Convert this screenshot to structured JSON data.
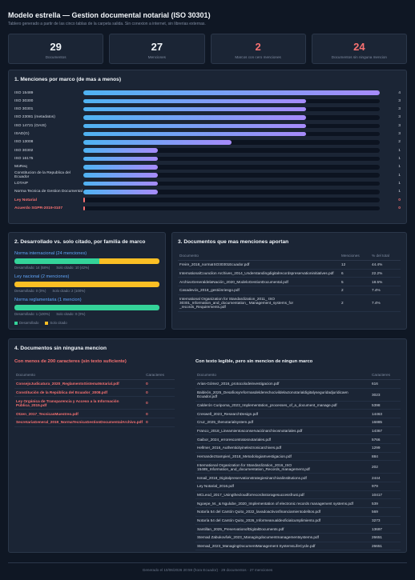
{
  "header": {
    "title": "Modelo estrella — Gestion documental notarial (ISO 30301)",
    "subtitle": "Tablero generado a partir de las cinco tablas de la carpeta salida. Sin conexion a internet, sin librerias externas."
  },
  "kpis": [
    {
      "value": 29,
      "label": "Documentos"
    },
    {
      "value": 27,
      "label": "Menciones"
    },
    {
      "value": 2,
      "label": "Marcos con cero menciones"
    },
    {
      "value": 24,
      "label": "Documentos sin ninguna mencion"
    }
  ],
  "mentions": {
    "title": "1. Menciones por marco (de mas a menos)",
    "categories": [
      "ISO 15489",
      "ISO 30300",
      "ISO 30301",
      "ISO 23081 (metadatos)",
      "ISO 14721 (OAIS)",
      "ISAD(G)",
      "ISO 13008",
      "ISO 30302",
      "ISO 16175",
      "MoReq",
      "Constitucion de la Republica del Ecuador",
      "LOTAIP",
      "Norma Tecnica de Gestion Documental",
      "Ley Notarial",
      "Acuerdo SGPR-2019-0107"
    ],
    "values": [
      4,
      3,
      3,
      3,
      3,
      3,
      2,
      1,
      1,
      1,
      1,
      1,
      1,
      0,
      0
    ]
  },
  "families": {
    "title": "2. Desarrollado vs. solo citado, por familia de marco",
    "items": [
      {
        "name": "Norma internacional (24 menciones)",
        "developed": 14,
        "cited": 10,
        "developed_label": "Desarrollado: 14 (58%)",
        "cited_label": "Solo citado: 10 (42%)"
      },
      {
        "name": "Ley nacional (2 menciones)",
        "developed": 0,
        "cited": 2,
        "developed_label": "Desarrollado: 0 (0%)",
        "cited_label": "Solo citado: 2 (100%)"
      },
      {
        "name": "Norma reglamentaria (1 mencion)",
        "developed": 1,
        "cited": 0,
        "developed_label": "Desarrollado: 1 (100%)",
        "cited_label": "Solo citado: 0 (0%)"
      }
    ],
    "legend": [
      "Desarrollado",
      "Solo citado"
    ]
  },
  "top_docs": {
    "title": "3. Documentos que mas menciones aportan",
    "headers": [
      "Documento",
      "Menciones",
      "% del total"
    ],
    "rows": [
      [
        "Freire_2018_normaISO30301Ecuador.pdf",
        12,
        "44.4%"
      ],
      [
        "InternationalCouncilon Archives_2014_Understandingdigitalrecordspreservationinitiatives.pdf",
        6,
        "22.2%"
      ],
      [
        "ArchivoGeneraldelaNación_2020_ModeloGestionDocumental.pdf",
        5,
        "18.5%"
      ],
      [
        "Casadevós_2018_gestiónriesgo.pdf",
        2,
        "7.4%"
      ],
      [
        "International Organization for Standardization_2011_ ISO 30301_Information_and_documentation_ Management_systems_for _records_Requirements.pdf",
        2,
        "7.4%"
      ]
    ]
  },
  "no_mentions": {
    "title": "4. Documentos sin ninguna mencion",
    "short": {
      "title": "Con menos de 200 caracteres (sin texto suficiente)",
      "headers": [
        "Documento",
        "Caracteres"
      ],
      "rows": [
        [
          "ConsejoJudicatura_2020_ReglamentoSistemaNotarial.pdf",
          0
        ],
        [
          "Constitución de la República del Ecuador_2008.pdf",
          0
        ],
        [
          "Ley Orgánica de Transparencia y Acceso a la Información Pública_2015.pdf",
          0
        ],
        [
          "Otzen_2017_TecnicasMuestreo.pdf",
          0
        ],
        [
          "SecretariaGeneral_2019_NormaTecnicaGestionDocumentalArchivo.pdf",
          0
        ]
      ]
    },
    "readable": {
      "title": "Con texto legible, pero sin mencion de ningun marco",
      "headers": [
        "Documento",
        "Caracteres"
      ],
      "rows": [
        [
          "Arias-Gómez_2016_protocolodeinvestigacion.pdf",
          616
        ],
        [
          "Baldeón_2025_Desafiosyreformasdelderechocivildelactonotarialdigitalyseguridadjuridicaen Ecuador.pdf",
          3023
        ],
        [
          "Calderón Curipoma_2023_Implementation_processes_of_a_document_manage.pdf",
          5398
        ],
        [
          "Creswell_2023_ResearchDesign.pdf",
          14463
        ],
        [
          "Cruz_2025_thenotarialsystem.pdf",
          16885
        ],
        [
          "Franco_2018_Lineamientosconservaciónarchivosnotariales.pdf",
          14367
        ],
        [
          "Gaibor_2024_errorescontratosnotariales.pdf",
          5766
        ],
        [
          "Hellmer_2016_Authenticityinelectronicarchives.pdf",
          1299
        ],
        [
          "HernandezSampieri_2018_MetodologiaInvestigacion.pdf",
          884
        ],
        [
          "International Organization for Standardization_2016_ISO 15489_Information_and_documentation_Records_management.pdf",
          202
        ],
        [
          "Ismail_2018_Digitalpreservationstrategiesinarchivalinstitutions.pdf",
          2444
        ],
        [
          "Ley Notarial_2016.pdf",
          979
        ],
        [
          "MCLeod_2017_Usingthecloudforrecordsstoragesuccessfrust.pdf",
          10417
        ],
        [
          "Ngoepe_M._& Ngulube_2020_Implementation of electronic records management systems.pdf",
          539
        ],
        [
          "Notaría 54 del Cantón Quito_2022_lavadoactivosfinanciamientodelitos.pdf",
          569
        ],
        [
          "Notaría 54 del Cantón Quito_2026_Informeanualdeoficialcumplimiento.pdf",
          3273
        ],
        [
          "Santillan_2025_PreservationofDigitalDocuments.pdf",
          13697
        ],
        [
          "Stemad Zabukovšek_2023_Managingdocumentmanagementsystems.pdf",
          26651
        ],
        [
          "Stemad_2023_ManagingDocumentManagement SystemsLifeCycle.pdf",
          26651
        ]
      ]
    }
  },
  "footer": "Generado el 10/06/2026 20:59 (hora Ecuador) · 29 documentos · 27 menciones"
}
